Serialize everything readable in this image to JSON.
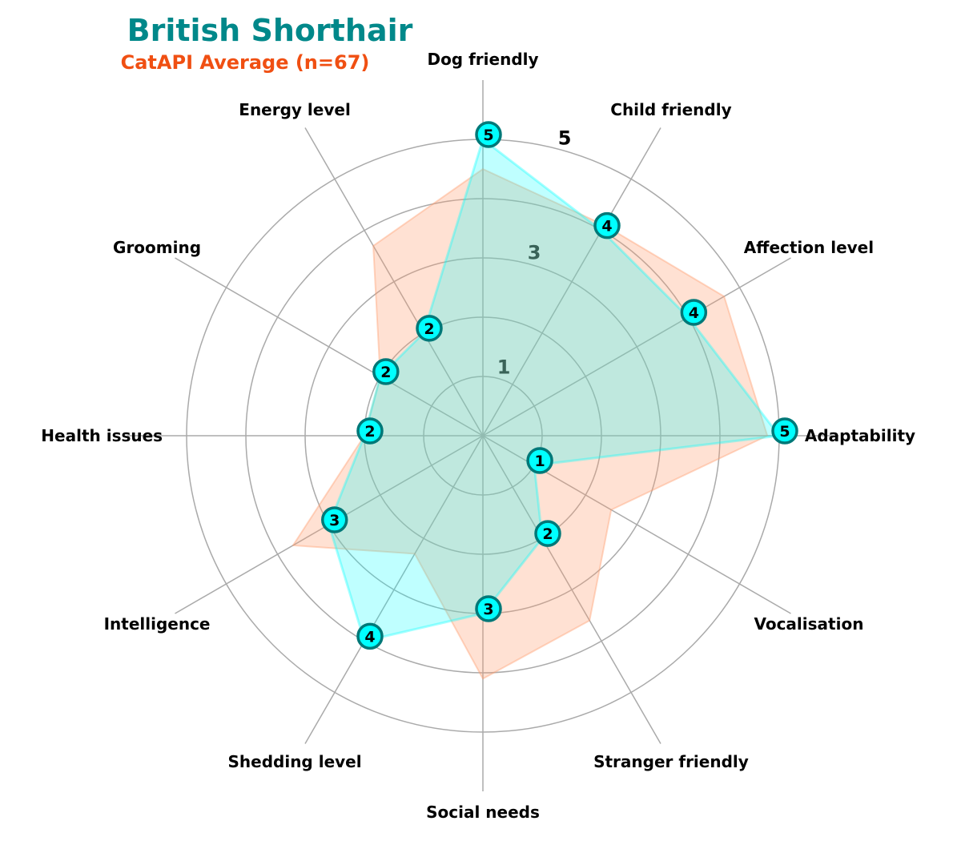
{
  "chart_data": {
    "type": "radar",
    "title": "British Shorthair",
    "subtitle": "CatAPI Average (n=67)",
    "categories": [
      "Adaptability",
      "Affection level",
      "Child friendly",
      "Dog friendly",
      "Energy level",
      "Grooming",
      "Health issues",
      "Intelligence",
      "Shedding level",
      "Social needs",
      "Stranger friendly",
      "Vocalisation"
    ],
    "rlim": [
      0,
      5
    ],
    "r_ticks": [
      1,
      3,
      5
    ],
    "r_tick_labels": [
      "1",
      "3",
      "5"
    ],
    "grid": true,
    "series": [
      {
        "name": "British Shorthair",
        "values": [
          5,
          4,
          4,
          5,
          2,
          2,
          2,
          3,
          4,
          3,
          2,
          1
        ],
        "color": "#00FFFF"
      },
      {
        "name": "CatAPI Average (n=67)",
        "values": [
          4.8,
          4.7,
          4.1,
          4.5,
          3.7,
          2.0,
          2.0,
          3.7,
          2.3,
          4.1,
          3.6,
          2.5
        ],
        "color": "#FF9A6C"
      }
    ]
  },
  "colors": {
    "title": "#00888A",
    "subtitle": "#F04F12",
    "breed_fill": "#00FFFF",
    "breed_edge": "#007878",
    "average_fill": "#FF9A6C",
    "grid": "#AAAAAA"
  }
}
